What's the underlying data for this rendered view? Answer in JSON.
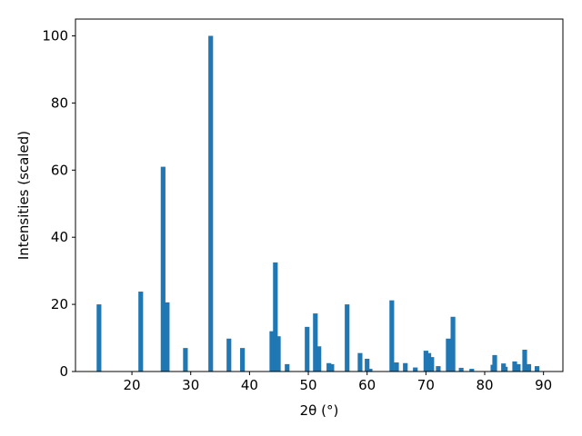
{
  "chart_data": {
    "type": "bar",
    "xlabel": "2θ (°)",
    "ylabel": "Intensities (scaled)",
    "x": [
      14.4,
      21.5,
      25.3,
      26.0,
      29.1,
      33.4,
      36.5,
      38.8,
      43.8,
      44.4,
      44.9,
      46.4,
      49.8,
      51.2,
      51.8,
      53.5,
      54.0,
      56.6,
      58.8,
      60.0,
      60.5,
      64.2,
      65.0,
      66.5,
      68.2,
      70.0,
      70.5,
      71.0,
      72.1,
      73.8,
      74.6,
      76.0,
      77.8,
      81.4,
      81.7,
      83.2,
      83.5,
      85.1,
      85.7,
      86.8,
      87.5,
      88.9
    ],
    "values": [
      20.0,
      23.8,
      61,
      20.6,
      7,
      100,
      9.8,
      7,
      12,
      32.5,
      10.5,
      2.2,
      13.3,
      17.3,
      7.5,
      2.5,
      2.2,
      20,
      5.5,
      3.8,
      0.8,
      21.2,
      2.7,
      2.5,
      1.2,
      6.2,
      5.5,
      4.3,
      1.6,
      9.8,
      16.3,
      1.1,
      0.8,
      2,
      4.9,
      2.4,
      1.4,
      3,
      2.2,
      6.5,
      2.2,
      1.6
    ],
    "color": "#1f77b4",
    "xlim": [
      10.4,
      93.3
    ],
    "xticks": [
      20,
      30,
      40,
      50,
      60,
      70,
      80,
      90
    ],
    "ylim": [
      0,
      105
    ],
    "yticks": [
      0,
      20,
      40,
      60,
      80,
      100
    ]
  }
}
